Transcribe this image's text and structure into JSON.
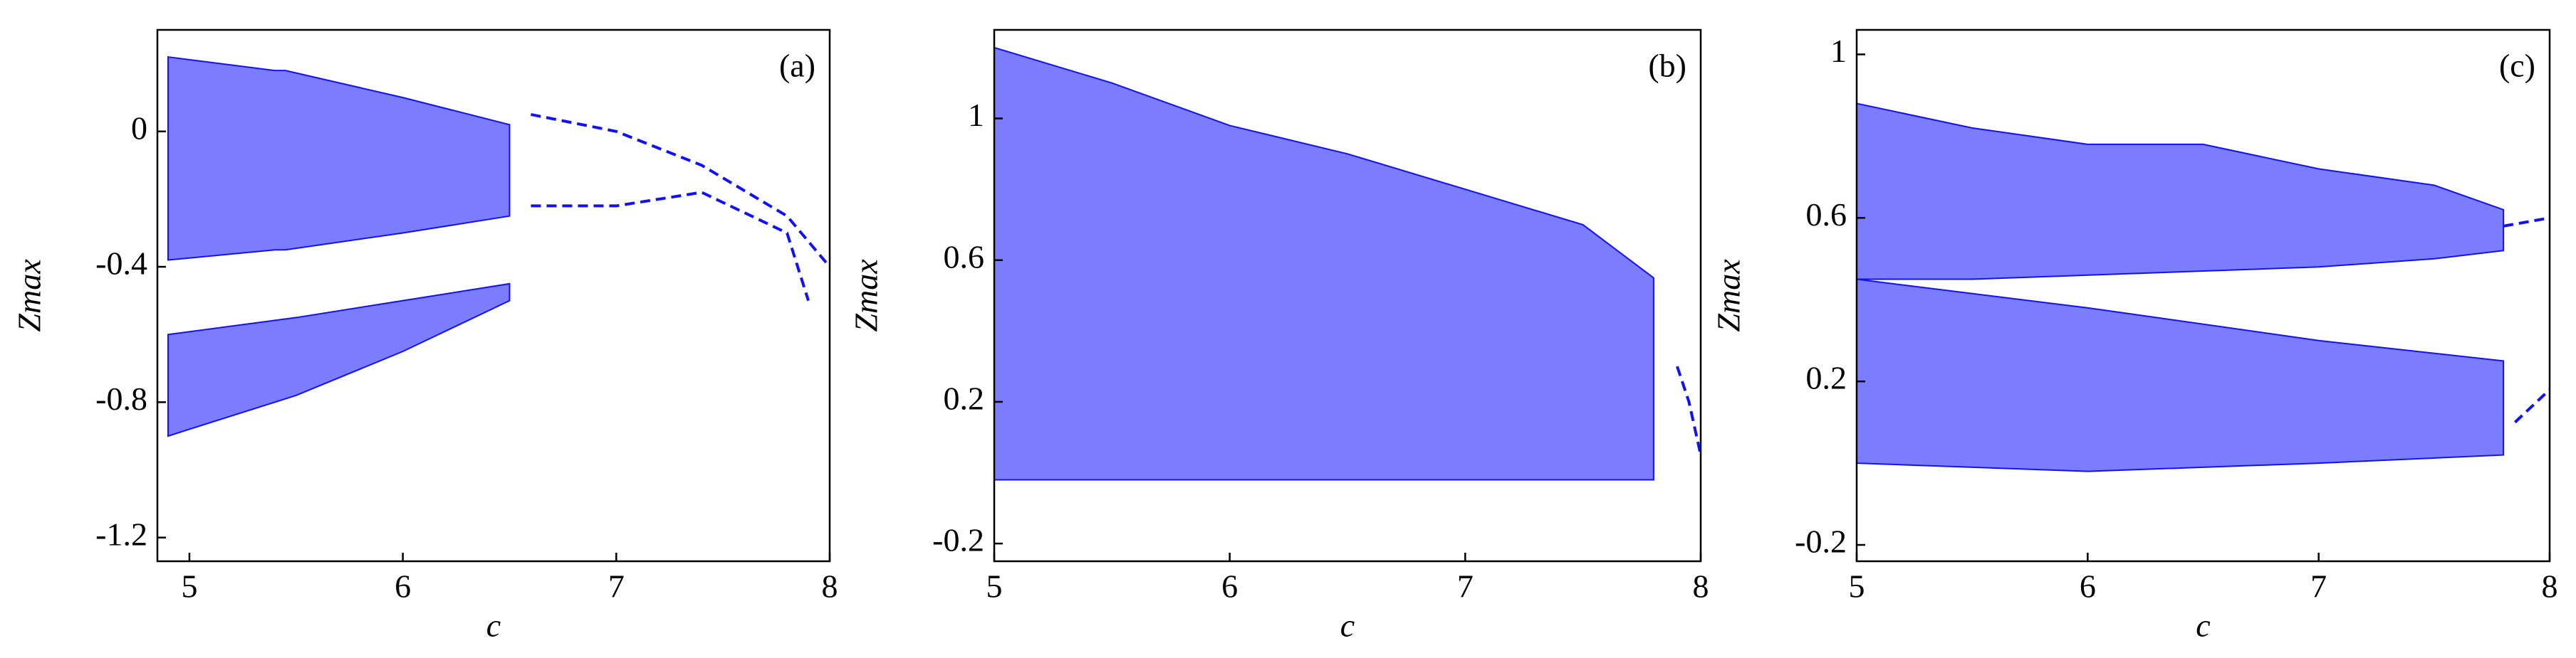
{
  "chart_data": [
    {
      "type": "bifurcation",
      "annotation": "(a)",
      "xlabel": "c",
      "ylabel": "Zmax",
      "xlim": [
        4.85,
        8
      ],
      "ylim": [
        -1.27,
        0.3
      ],
      "xticks": [
        5,
        6,
        7,
        8
      ],
      "yticks": [
        0,
        -0.4,
        -0.8,
        -1.2
      ],
      "series": [
        {
          "color": "#1010ff",
          "x": [
            4.9,
            5.4,
            5.45,
            6.0,
            6.5
          ],
          "high": [
            0.22,
            0.18,
            0.18,
            0.1,
            0.02
          ],
          "low": [
            -0.38,
            -0.35,
            -0.35,
            -0.3,
            -0.25
          ]
        },
        {
          "color": "#1010ff",
          "x": [
            4.9,
            5.5,
            6.0,
            6.5
          ],
          "high": [
            -0.6,
            -0.55,
            -0.5,
            -0.45
          ],
          "low": [
            -0.9,
            -0.78,
            -0.65,
            -0.5
          ]
        },
        {
          "color": "#1010ff",
          "x": [
            6.6,
            7.0,
            7.4,
            7.8,
            8.0
          ],
          "values": [
            0.05,
            0.0,
            -0.1,
            -0.25,
            -0.4
          ]
        },
        {
          "color": "#1010ff",
          "x": [
            6.6,
            7.0,
            7.4,
            7.8,
            7.9
          ],
          "values": [
            -0.22,
            -0.22,
            -0.18,
            -0.3,
            -0.5
          ]
        }
      ]
    },
    {
      "type": "bifurcation",
      "annotation": "(b)",
      "xlabel": "c",
      "ylabel": "Zmax",
      "xlim": [
        5,
        8
      ],
      "ylim": [
        -0.25,
        1.25
      ],
      "xticks": [
        5,
        6,
        7,
        8
      ],
      "yticks": [
        -0.2,
        0.2,
        0.6,
        1
      ],
      "series": [
        {
          "color": "#1010ff",
          "x": [
            5,
            5.5,
            6,
            6.5,
            7,
            7.5,
            7.8
          ],
          "high": [
            1.2,
            1.1,
            0.98,
            0.9,
            0.8,
            0.7,
            0.55
          ],
          "low": [
            -0.02,
            -0.02,
            -0.02,
            -0.02,
            -0.02,
            -0.02,
            -0.02
          ]
        },
        {
          "color": "#1010ff",
          "x": [
            7.9,
            7.95,
            8
          ],
          "values": [
            0.3,
            0.2,
            0.05
          ]
        }
      ]
    },
    {
      "type": "bifurcation",
      "annotation": "(c)",
      "xlabel": "c",
      "ylabel": "Zmax",
      "xlim": [
        5,
        8
      ],
      "ylim": [
        -0.24,
        1.06
      ],
      "xticks": [
        5,
        6,
        7,
        8
      ],
      "yticks": [
        -0.2,
        0.2,
        0.6,
        1
      ],
      "series": [
        {
          "color": "#1010ff",
          "x": [
            5,
            5.5,
            6,
            6.5,
            7,
            7.5,
            7.8
          ],
          "high": [
            0.88,
            0.82,
            0.78,
            0.78,
            0.72,
            0.68,
            0.62
          ],
          "low": [
            0.45,
            0.45,
            0.46,
            0.47,
            0.48,
            0.5,
            0.52
          ]
        },
        {
          "color": "#1010ff",
          "x": [
            5,
            6,
            7,
            7.8
          ],
          "high": [
            0.45,
            0.38,
            0.3,
            0.25
          ],
          "low": [
            0.0,
            -0.02,
            0.0,
            0.02
          ]
        },
        {
          "color": "#1010ff",
          "x": [
            7.8,
            8
          ],
          "values": [
            0.58,
            0.6
          ]
        },
        {
          "color": "#1010ff",
          "x": [
            7.85,
            8
          ],
          "values": [
            0.1,
            0.18
          ]
        }
      ]
    }
  ]
}
